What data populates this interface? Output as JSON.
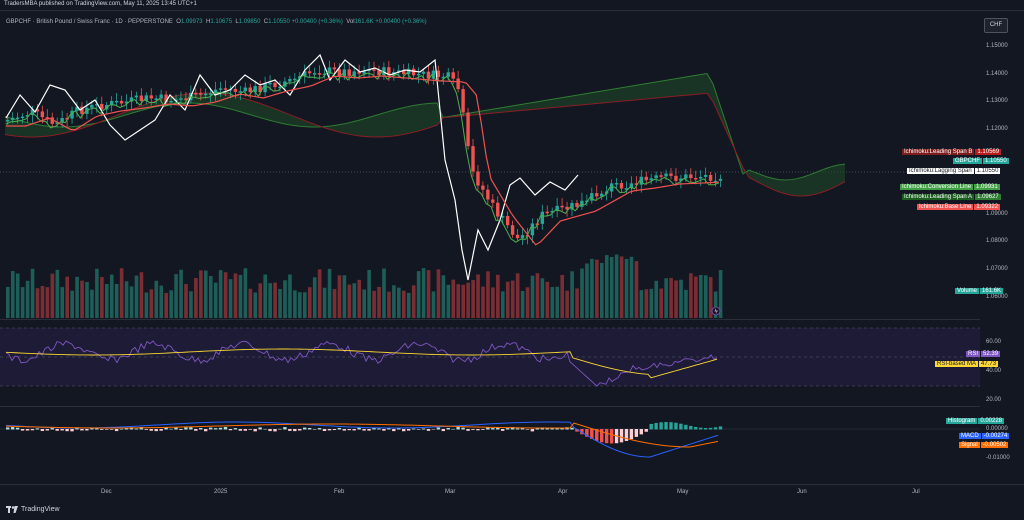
{
  "header": {
    "published": "TradersMBA published on TradingView.com, May 11, 2025 13:45 UTC+1"
  },
  "symbol": {
    "title": "GBPCHF · British Pound / Swiss Franc · 1D · PEPPERSTONE",
    "o_label": "O",
    "o": "1.09973",
    "h_label": "H",
    "h": "1.10675",
    "l_label": "L",
    "l": "1.09850",
    "c_label": "C",
    "c": "1.10550",
    "change": "+0.00400 (+0.36%)",
    "vol_label": "Vol",
    "vol": "161.6K",
    "vol_change": "+0.00400 (+0.36%)"
  },
  "currency_button": "CHF",
  "price_axis": [
    "1.15000",
    "1.14000",
    "1.13000",
    "1.12000",
    "1.09000",
    "1.08000",
    "1.07000",
    "1.06000"
  ],
  "rsi_axis": [
    "60.00",
    "40.00",
    "20.00"
  ],
  "macd_axis": [
    "0.00000",
    "-0.01000"
  ],
  "time_axis": [
    "Dec",
    "2025",
    "Feb",
    "Mar",
    "Apr",
    "May",
    "Jun",
    "Jul"
  ],
  "labels": {
    "leading_b": {
      "name": "Ichimoku:Leading Span B",
      "value": "1.10569"
    },
    "gbpchf": {
      "name": "GBPCHF",
      "value": "1.10550"
    },
    "lagging": {
      "name": "Ichimoku:Lagging Span",
      "value": "1.10550"
    },
    "conversion": {
      "name": "Ichimoku:Conversion Line",
      "value": "1.09931"
    },
    "leading_a": {
      "name": "Ichimoku:Leading Span A",
      "value": "1.09627"
    },
    "base": {
      "name": "Ichimoku:Base Line",
      "value": "1.09322"
    },
    "volume": {
      "name": "Volume",
      "value": "161.6K"
    },
    "rsi": {
      "name": "RSI",
      "value": "52.39"
    },
    "rsi_ma": {
      "name": "RSI-based MA",
      "value": "47.73"
    },
    "histogram": {
      "name": "Histogram",
      "value": "0.00228"
    },
    "macd": {
      "name": "MACD",
      "value": "-0.00274"
    },
    "signal": {
      "name": "Signal",
      "value": "-0.00502"
    }
  },
  "footer": {
    "brand": "TradingView"
  },
  "colors": {
    "bg": "#131722",
    "up": "#26a69a",
    "down": "#ef5350",
    "lagging": "#ffffff",
    "conversion": "#4caf50",
    "base": "#ef5350",
    "cloud_up": "#1b5e20",
    "cloud_down": "#7f1d1d",
    "rsi": "#7e57c2",
    "rsi_ma": "#fdd835",
    "macd": "#2962ff",
    "signal": "#ff6d00"
  }
}
